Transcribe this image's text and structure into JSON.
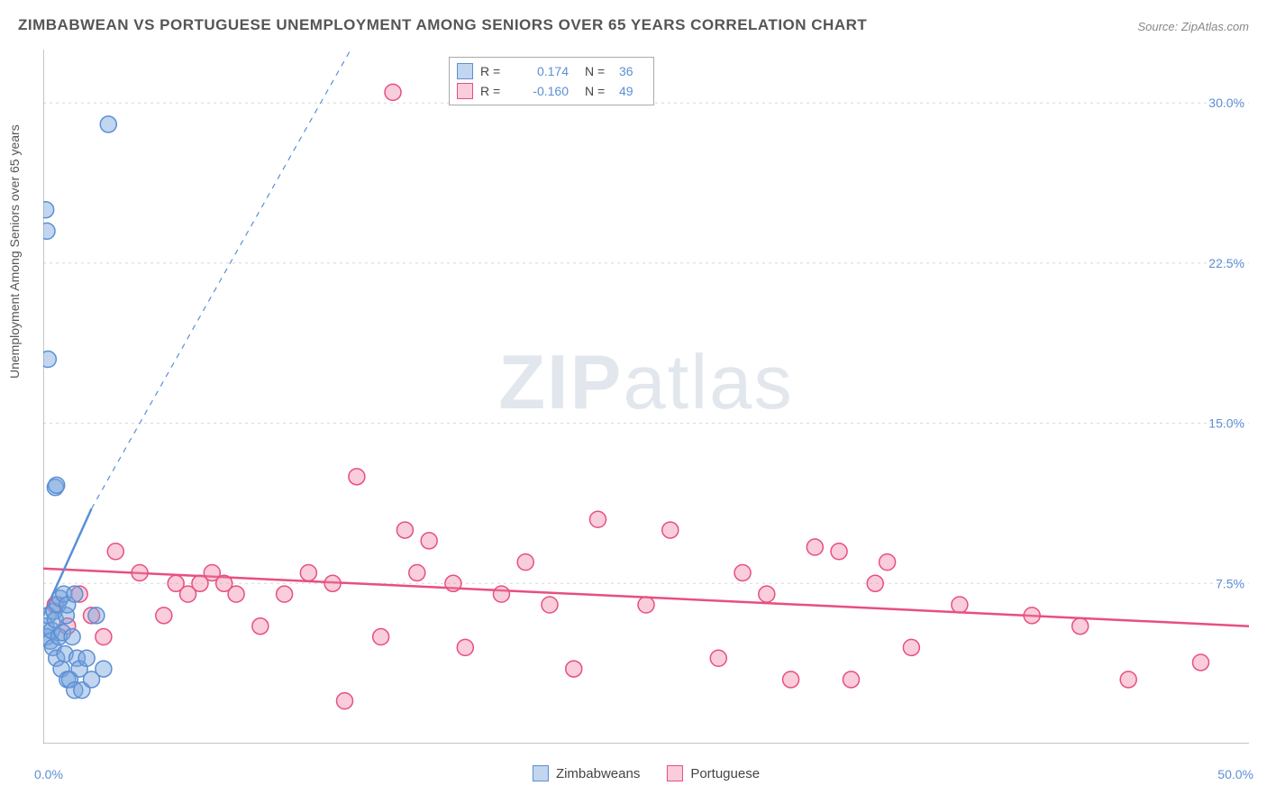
{
  "title": "ZIMBABWEAN VS PORTUGUESE UNEMPLOYMENT AMONG SENIORS OVER 65 YEARS CORRELATION CHART",
  "source": "Source: ZipAtlas.com",
  "y_axis_label": "Unemployment Among Seniors over 65 years",
  "watermark_a": "ZIP",
  "watermark_b": "atlas",
  "chart": {
    "type": "scatter",
    "xlim": [
      0,
      50
    ],
    "ylim": [
      0,
      32.5
    ],
    "x_origin_label": "0.0%",
    "x_max_label": "50.0%",
    "y_ticks": [
      7.5,
      15.0,
      22.5,
      30.0
    ],
    "y_tick_labels": [
      "7.5%",
      "15.0%",
      "22.5%",
      "30.0%"
    ],
    "x_minor_ticks": [
      5,
      10,
      15,
      20,
      25,
      30,
      35,
      40,
      45
    ],
    "grid_color": "#d8d8d8",
    "axis_color": "#888888",
    "label_color": "#5b8fd6",
    "background_color": "#ffffff",
    "marker_radius": 9,
    "marker_stroke_width": 1.5,
    "trend_line_width": 2.5,
    "series": [
      {
        "name": "Zimbabweans",
        "fill": "rgba(120,165,220,0.45)",
        "stroke": "#5b8fd6",
        "r_value": "0.174",
        "n_value": "36",
        "trend": {
          "x1": 0,
          "y1": 6.0,
          "x2": 2.0,
          "y2": 11.0,
          "dash_to_x": 14.0,
          "dash_to_y": 35.0
        },
        "points": [
          [
            0.1,
            5.5
          ],
          [
            0.15,
            5.0
          ],
          [
            0.2,
            6.0
          ],
          [
            0.3,
            4.8
          ],
          [
            0.35,
            5.3
          ],
          [
            0.4,
            4.5
          ],
          [
            0.45,
            6.2
          ],
          [
            0.5,
            5.8
          ],
          [
            0.55,
            4.0
          ],
          [
            0.6,
            6.5
          ],
          [
            0.65,
            5.0
          ],
          [
            0.7,
            6.8
          ],
          [
            0.75,
            3.5
          ],
          [
            0.8,
            5.2
          ],
          [
            0.85,
            7.0
          ],
          [
            0.9,
            4.2
          ],
          [
            0.95,
            6.0
          ],
          [
            1.0,
            3.0
          ],
          [
            1.1,
            3.0
          ],
          [
            1.2,
            5.0
          ],
          [
            1.3,
            2.5
          ],
          [
            1.4,
            4.0
          ],
          [
            1.5,
            3.5
          ],
          [
            1.6,
            2.5
          ],
          [
            1.8,
            4.0
          ],
          [
            2.0,
            3.0
          ],
          [
            2.2,
            6.0
          ],
          [
            2.5,
            3.5
          ],
          [
            0.5,
            12.0
          ],
          [
            0.55,
            12.1
          ],
          [
            0.2,
            18.0
          ],
          [
            0.15,
            24.0
          ],
          [
            0.1,
            25.0
          ],
          [
            2.7,
            29.0
          ],
          [
            1.0,
            6.5
          ],
          [
            1.3,
            7.0
          ]
        ]
      },
      {
        "name": "Portuguese",
        "fill": "rgba(240,130,165,0.40)",
        "stroke": "#e84f7e",
        "r_value": "-0.160",
        "n_value": "49",
        "trend": {
          "x1": 0,
          "y1": 8.2,
          "x2": 50,
          "y2": 5.5
        },
        "points": [
          [
            0.5,
            6.5
          ],
          [
            1.0,
            5.5
          ],
          [
            1.5,
            7.0
          ],
          [
            2.0,
            6.0
          ],
          [
            2.5,
            5.0
          ],
          [
            3.0,
            9.0
          ],
          [
            4.0,
            8.0
          ],
          [
            5.0,
            6.0
          ],
          [
            5.5,
            7.5
          ],
          [
            6.0,
            7.0
          ],
          [
            6.5,
            7.5
          ],
          [
            7.0,
            8.0
          ],
          [
            7.5,
            7.5
          ],
          [
            8.0,
            7.0
          ],
          [
            9.0,
            5.5
          ],
          [
            10.0,
            7.0
          ],
          [
            11.0,
            8.0
          ],
          [
            12.0,
            7.5
          ],
          [
            12.5,
            2.0
          ],
          [
            13.0,
            12.5
          ],
          [
            14.0,
            5.0
          ],
          [
            14.5,
            30.5
          ],
          [
            15.0,
            10.0
          ],
          [
            15.5,
            8.0
          ],
          [
            16.0,
            9.5
          ],
          [
            17.0,
            7.5
          ],
          [
            17.5,
            4.5
          ],
          [
            19.0,
            7.0
          ],
          [
            20.0,
            8.5
          ],
          [
            21.0,
            6.5
          ],
          [
            22.0,
            3.5
          ],
          [
            23.0,
            10.5
          ],
          [
            25.0,
            6.5
          ],
          [
            26.0,
            10.0
          ],
          [
            28.0,
            4.0
          ],
          [
            29.0,
            8.0
          ],
          [
            30.0,
            7.0
          ],
          [
            31.0,
            3.0
          ],
          [
            32.0,
            9.2
          ],
          [
            33.0,
            9.0
          ],
          [
            33.5,
            3.0
          ],
          [
            35.0,
            8.5
          ],
          [
            36.0,
            4.5
          ],
          [
            38.0,
            6.5
          ],
          [
            41.0,
            6.0
          ],
          [
            43.0,
            5.5
          ],
          [
            45.0,
            3.0
          ],
          [
            48.0,
            3.8
          ],
          [
            34.5,
            7.5
          ]
        ]
      }
    ]
  },
  "legend_bottom": [
    {
      "label": "Zimbabweans",
      "fill": "rgba(120,165,220,0.45)",
      "stroke": "#5b8fd6"
    },
    {
      "label": "Portuguese",
      "fill": "rgba(240,130,165,0.40)",
      "stroke": "#e84f7e"
    }
  ]
}
